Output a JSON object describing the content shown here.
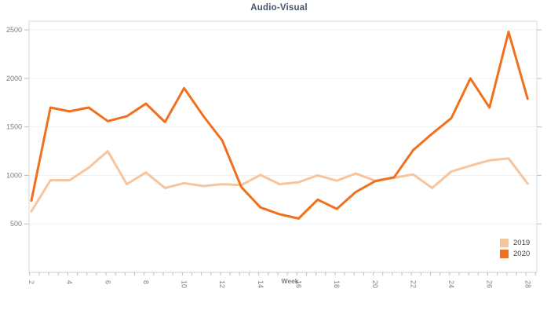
{
  "title": "Audio-Visual",
  "axis": {
    "x_title": "Week"
  },
  "legend": {
    "items": [
      {
        "label": "2019",
        "color": "#F7C59D"
      },
      {
        "label": "2020",
        "color": "#F1701E"
      }
    ]
  },
  "colors": {
    "title": "#44546A",
    "axis_text": "#7F7F7F",
    "grid": "#F1F1F1",
    "plot_border": "#D8D8D8",
    "tick": "#BDBDBD",
    "series_2019": "#F7C59D",
    "series_2020": "#F1701E"
  },
  "chart_data": {
    "type": "line",
    "title": "Audio-Visual",
    "xlabel": "Week",
    "ylabel": "",
    "x": [
      2,
      3,
      4,
      5,
      6,
      7,
      8,
      9,
      10,
      11,
      12,
      13,
      14,
      15,
      16,
      17,
      18,
      19,
      20,
      21,
      22,
      23,
      24,
      25,
      26,
      27,
      28
    ],
    "series": [
      {
        "name": "2019",
        "color": "#F7C59D",
        "values": [
          630,
          950,
          950,
          1080,
          1250,
          910,
          1030,
          870,
          920,
          890,
          910,
          900,
          1005,
          910,
          930,
          1000,
          945,
          1020,
          945,
          975,
          1010,
          870,
          1040,
          1100,
          1155,
          1175,
          915
        ]
      },
      {
        "name": "2020",
        "color": "#F1701E",
        "values": [
          740,
          1700,
          1660,
          1700,
          1560,
          1610,
          1740,
          1550,
          1900,
          1615,
          1360,
          880,
          670,
          600,
          555,
          750,
          655,
          830,
          940,
          980,
          1260,
          1430,
          1590,
          2000,
          1700,
          2480,
          1790
        ]
      }
    ],
    "ylim": [
      0,
      2590
    ],
    "yticks": [
      500,
      1000,
      1500,
      2000,
      2500
    ],
    "xticks": [
      2,
      4,
      6,
      8,
      10,
      12,
      14,
      16,
      18,
      20,
      22,
      24,
      26,
      28
    ],
    "grid": "horizontal",
    "legend_position": "bottom-right"
  }
}
